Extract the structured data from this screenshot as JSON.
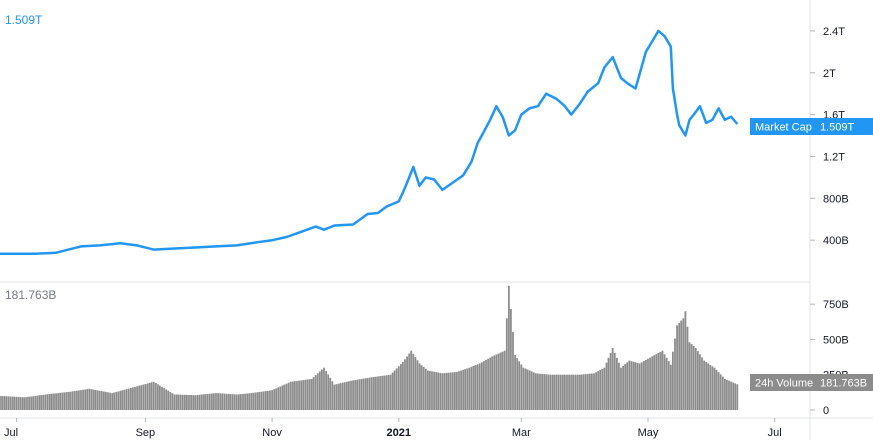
{
  "chart_data": [
    {
      "type": "line",
      "last_value_label": "1.509T",
      "series": [
        {
          "name": "Market Cap",
          "badge_value": "1.509T",
          "x": [
            "2020-06-23",
            "2020-07-01",
            "2020-07-10",
            "2020-07-20",
            "2020-08-01",
            "2020-08-10",
            "2020-08-20",
            "2020-08-28",
            "2020-09-05",
            "2020-09-15",
            "2020-09-25",
            "2020-10-05",
            "2020-10-15",
            "2020-10-25",
            "2020-11-01",
            "2020-11-08",
            "2020-11-15",
            "2020-11-22",
            "2020-11-26",
            "2020-12-01",
            "2020-12-10",
            "2020-12-17",
            "2020-12-22",
            "2020-12-26",
            "2021-01-01",
            "2021-01-04",
            "2021-01-06",
            "2021-01-08",
            "2021-01-11",
            "2021-01-14",
            "2021-01-18",
            "2021-01-22",
            "2021-01-27",
            "2021-02-01",
            "2021-02-05",
            "2021-02-08",
            "2021-02-10",
            "2021-02-14",
            "2021-02-17",
            "2021-02-20",
            "2021-02-23",
            "2021-02-26",
            "2021-03-01",
            "2021-03-05",
            "2021-03-09",
            "2021-03-13",
            "2021-03-18",
            "2021-03-22",
            "2021-03-25",
            "2021-03-29",
            "2021-04-02",
            "2021-04-07",
            "2021-04-10",
            "2021-04-14",
            "2021-04-18",
            "2021-04-21",
            "2021-04-25",
            "2021-04-30",
            "2021-05-03",
            "2021-05-06",
            "2021-05-09",
            "2021-05-12",
            "2021-05-13",
            "2021-05-15",
            "2021-05-16",
            "2021-05-19",
            "2021-05-21",
            "2021-05-23",
            "2021-05-26",
            "2021-05-29",
            "2021-06-01",
            "2021-06-04",
            "2021-06-07",
            "2021-06-10",
            "2021-06-13"
          ],
          "values": [
            0.27,
            0.27,
            0.27,
            0.28,
            0.34,
            0.35,
            0.37,
            0.35,
            0.31,
            0.32,
            0.33,
            0.34,
            0.35,
            0.38,
            0.4,
            0.43,
            0.48,
            0.53,
            0.5,
            0.54,
            0.55,
            0.65,
            0.66,
            0.72,
            0.77,
            0.9,
            1.0,
            1.1,
            0.92,
            1.0,
            0.98,
            0.88,
            0.95,
            1.02,
            1.15,
            1.33,
            1.4,
            1.55,
            1.68,
            1.58,
            1.4,
            1.45,
            1.6,
            1.66,
            1.68,
            1.8,
            1.75,
            1.68,
            1.6,
            1.7,
            1.82,
            1.9,
            2.05,
            2.15,
            1.95,
            1.9,
            1.85,
            2.2,
            2.3,
            2.4,
            2.35,
            2.25,
            1.85,
            1.6,
            1.5,
            1.4,
            1.55,
            1.6,
            1.68,
            1.52,
            1.55,
            1.66,
            1.55,
            1.58,
            1.51
          ]
        }
      ],
      "ylim": [
        0,
        2.6
      ],
      "y_ticks": [
        {
          "value": 0.4,
          "label": "400B"
        },
        {
          "value": 0.8,
          "label": "800B"
        },
        {
          "value": 1.2,
          "label": "1.2T"
        },
        {
          "value": 1.6,
          "label": "1.6T"
        },
        {
          "value": 2.0,
          "label": "2T"
        },
        {
          "value": 2.4,
          "label": "2.4T"
        }
      ],
      "color": "#2196f3",
      "grid": false
    },
    {
      "type": "bar",
      "last_value_label": "181.763B",
      "series": [
        {
          "name": "24h Volume",
          "badge_value": "181.763B",
          "x": [
            "2020-06-23",
            "2020-07-05",
            "2020-07-15",
            "2020-07-27",
            "2020-08-05",
            "2020-08-16",
            "2020-08-26",
            "2020-09-05",
            "2020-09-15",
            "2020-09-25",
            "2020-10-05",
            "2020-10-15",
            "2020-10-22",
            "2020-11-01",
            "2020-11-10",
            "2020-11-20",
            "2020-11-26",
            "2020-12-01",
            "2020-12-10",
            "2020-12-18",
            "2020-12-28",
            "2021-01-03",
            "2021-01-07",
            "2021-01-11",
            "2021-01-15",
            "2021-01-22",
            "2021-01-29",
            "2021-02-04",
            "2021-02-09",
            "2021-02-15",
            "2021-02-21",
            "2021-02-23",
            "2021-02-26",
            "2021-03-02",
            "2021-03-08",
            "2021-03-15",
            "2021-03-22",
            "2021-03-29",
            "2021-04-05",
            "2021-04-10",
            "2021-04-14",
            "2021-04-18",
            "2021-04-22",
            "2021-04-27",
            "2021-05-03",
            "2021-05-08",
            "2021-05-12",
            "2021-05-15",
            "2021-05-18",
            "2021-05-19",
            "2021-05-21",
            "2021-05-24",
            "2021-05-28",
            "2021-06-02",
            "2021-06-07",
            "2021-06-13"
          ],
          "values": [
            100,
            90,
            110,
            130,
            150,
            120,
            160,
            200,
            110,
            105,
            120,
            110,
            120,
            140,
            200,
            220,
            300,
            180,
            210,
            230,
            250,
            340,
            420,
            330,
            280,
            260,
            270,
            300,
            330,
            380,
            420,
            880,
            390,
            300,
            260,
            250,
            250,
            250,
            260,
            300,
            440,
            300,
            350,
            330,
            380,
            420,
            320,
            600,
            650,
            700,
            480,
            440,
            350,
            300,
            220,
            182
          ]
        }
      ],
      "ylim": [
        0,
        900
      ],
      "y_ticks": [
        {
          "value": 0,
          "label": "0"
        },
        {
          "value": 250,
          "label": "250B"
        },
        {
          "value": 500,
          "label": "500B"
        },
        {
          "value": 750,
          "label": "750B"
        }
      ],
      "color": "#8c8c8c",
      "grid": false
    }
  ],
  "x_axis": {
    "ticks": [
      {
        "date": "2020-07-01",
        "label": "Jul",
        "bold": false
      },
      {
        "date": "2020-09-01",
        "label": "Sep",
        "bold": false
      },
      {
        "date": "2020-11-01",
        "label": "Nov",
        "bold": false
      },
      {
        "date": "2021-01-01",
        "label": "2021",
        "bold": true
      },
      {
        "date": "2021-03-01",
        "label": "Mar",
        "bold": false
      },
      {
        "date": "2021-05-01",
        "label": "May",
        "bold": false
      },
      {
        "date": "2021-07-01",
        "label": "Jul",
        "bold": false
      }
    ],
    "range": [
      "2020-06-23",
      "2021-07-18"
    ]
  }
}
